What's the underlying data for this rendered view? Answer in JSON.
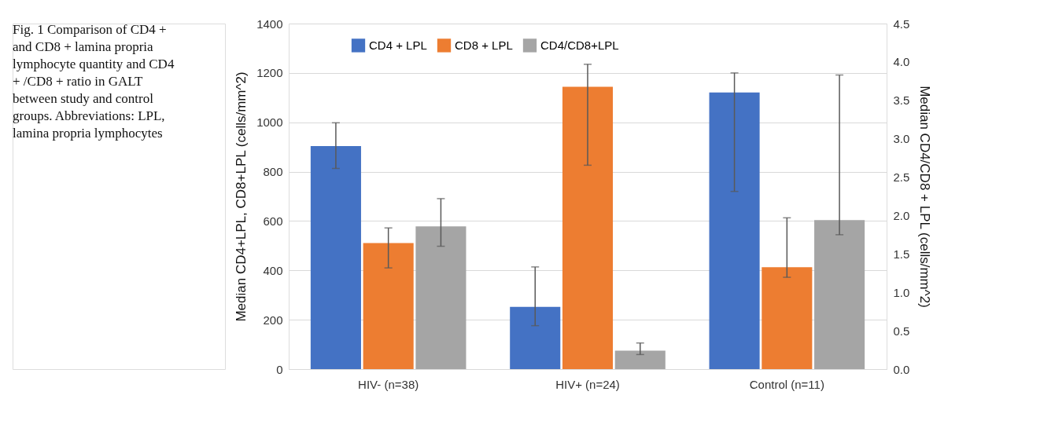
{
  "chart_data": {
    "type": "bar",
    "annotations": [
      "Fig. 1 Comparison of CD4 + and CD8 + lamina propria lymphocyte quantity and CD4 + /CD8 + ratio in GALT between study and control groups. Abbreviations: LPL, lamina propria lymphocytes"
    ],
    "ylabel": "Median CD4+LPL, CD8+LPL (cells/mm^2)",
    "y2label": "Median CD4/CD8 + LPL (cells/mm^2)",
    "categories": [
      "HIV- (n=38)",
      "HIV+ (n=24)",
      "Control  (n=11)"
    ],
    "series": [
      {
        "name": "CD4 + LPL",
        "color": "#4472c4",
        "values": [
          904,
          252,
          1121
        ],
        "errors": [
          [
            813,
            998
          ],
          [
            176,
            414
          ],
          [
            720,
            1200
          ]
        ]
      },
      {
        "name": "CD8 + LPL",
        "color": "#ed7d31",
        "values": [
          511,
          1144,
          413
        ],
        "errors": [
          [
            410,
            572
          ],
          [
            826,
            1235
          ],
          [
            372,
            613
          ]
        ]
      },
      {
        "name": "CD4/CD8+LPL",
        "color": "#a5a5a5",
        "axis": "y2",
        "values": [
          1.86,
          0.24,
          1.94
        ],
        "errors": [
          [
            1.6,
            2.22
          ],
          [
            0.19,
            0.34
          ],
          [
            1.75,
            3.83
          ]
        ]
      }
    ],
    "ylim": [
      0,
      1400
    ],
    "yticks": [
      0,
      200,
      400,
      600,
      800,
      1000,
      1200,
      1400
    ],
    "y2lim": [
      0,
      4.5
    ],
    "y2ticks": [
      {
        "value": 0,
        "label": "0.0"
      },
      {
        "value": 0.5,
        "label": "0.5"
      },
      {
        "value": 1,
        "label": "1.0"
      },
      {
        "value": 1.5,
        "label": "1.5"
      },
      {
        "value": 2,
        "label": "2.0"
      },
      {
        "value": 2.5,
        "label": "2.5"
      },
      {
        "value": 3,
        "label": "3.0"
      },
      {
        "value": 3.5,
        "label": "3.5"
      },
      {
        "value": 4,
        "label": "4.0"
      },
      {
        "value": 4.5,
        "label": "4.5"
      }
    ],
    "grid": "y",
    "legend": "top"
  }
}
